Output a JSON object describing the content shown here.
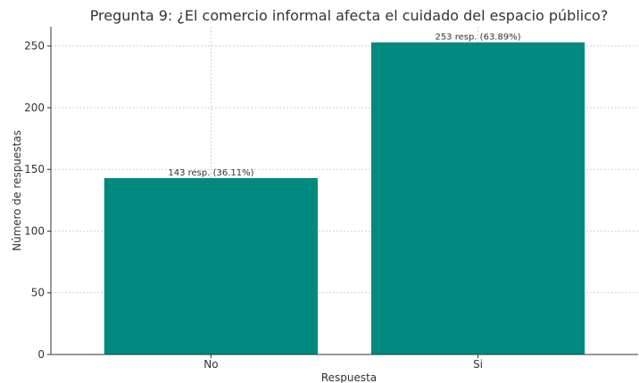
{
  "chart_data": {
    "type": "bar",
    "title": "Pregunta 9: ¿El comercio informal afecta el cuidado del espacio público?",
    "xlabel": "Respuesta",
    "ylabel": "Número de respuestas",
    "categories": [
      "No",
      "Si"
    ],
    "values": [
      143,
      253
    ],
    "data_labels": [
      "143 resp. (36.11%)",
      "253 resp. (63.89%)"
    ],
    "ylim": [
      0,
      265.65
    ],
    "yticks": [
      0,
      50,
      100,
      150,
      200,
      250
    ],
    "grid": true,
    "legend": "none",
    "colors": {
      "bar": "#00897f",
      "grid": "#c8c8c8",
      "axis": "#333333",
      "text": "#333333"
    }
  }
}
